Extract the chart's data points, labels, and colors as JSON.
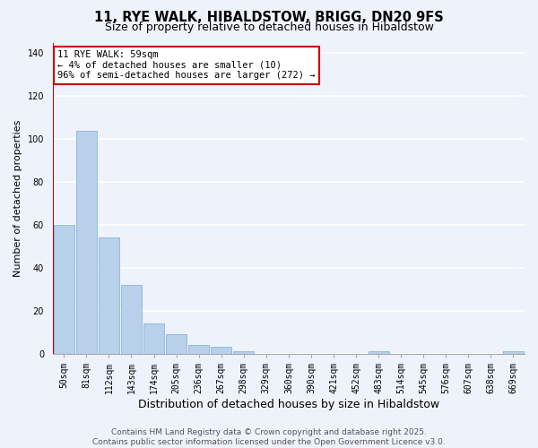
{
  "title": "11, RYE WALK, HIBALDSTOW, BRIGG, DN20 9FS",
  "subtitle": "Size of property relative to detached houses in Hibaldstow",
  "xlabel": "Distribution of detached houses by size in Hibaldstow",
  "ylabel": "Number of detached properties",
  "categories": [
    "50sqm",
    "81sqm",
    "112sqm",
    "143sqm",
    "174sqm",
    "205sqm",
    "236sqm",
    "267sqm",
    "298sqm",
    "329sqm",
    "360sqm",
    "390sqm",
    "421sqm",
    "452sqm",
    "483sqm",
    "514sqm",
    "545sqm",
    "576sqm",
    "607sqm",
    "638sqm",
    "669sqm"
  ],
  "values": [
    60,
    104,
    54,
    32,
    14,
    9,
    4,
    3,
    1,
    0,
    0,
    0,
    0,
    0,
    1,
    0,
    0,
    0,
    0,
    0,
    1
  ],
  "bar_color": "#b8d0ea",
  "bar_edge_color": "#7aafd4",
  "background_color": "#eef2fb",
  "grid_color": "#ffffff",
  "ylim": [
    0,
    145
  ],
  "yticks": [
    0,
    20,
    40,
    60,
    80,
    100,
    120,
    140
  ],
  "annotation_title": "11 RYE WALK: 59sqm",
  "annotation_line1": "← 4% of detached houses are smaller (10)",
  "annotation_line2": "96% of semi-detached houses are larger (272) →",
  "vline_color": "#cc0000",
  "annotation_box_edge_color": "#cc0000",
  "footer_line1": "Contains HM Land Registry data © Crown copyright and database right 2025.",
  "footer_line2": "Contains public sector information licensed under the Open Government Licence v3.0.",
  "title_fontsize": 10.5,
  "subtitle_fontsize": 9,
  "xlabel_fontsize": 9,
  "ylabel_fontsize": 8,
  "tick_fontsize": 7,
  "annotation_fontsize": 7.5,
  "footer_fontsize": 6.5
}
